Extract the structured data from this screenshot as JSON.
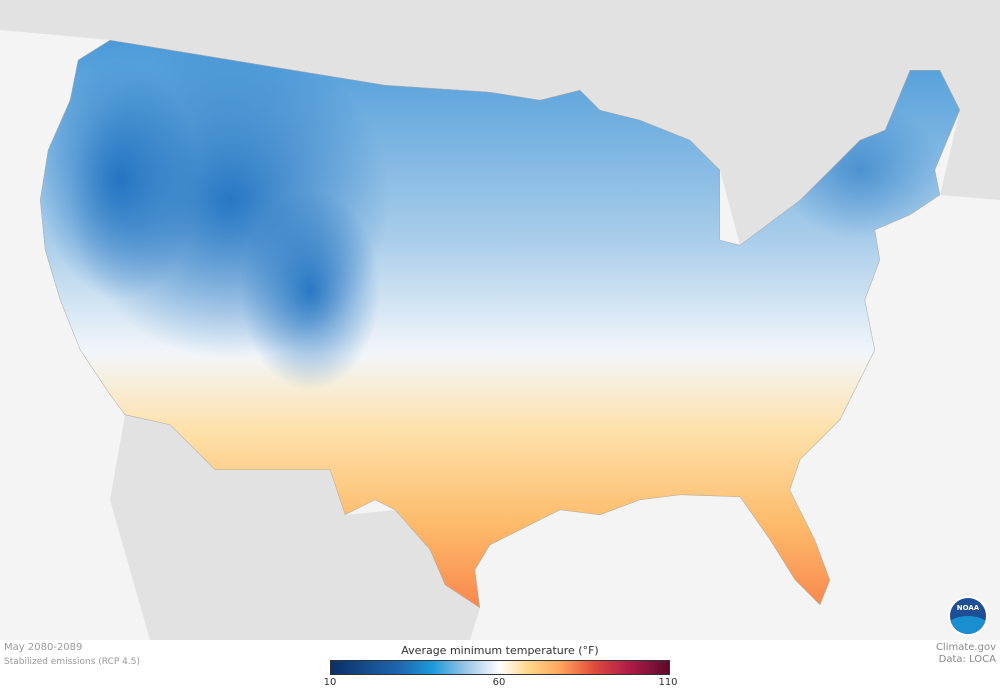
{
  "period": "May 2080-2089",
  "scenario": "Stabilized emissions (RCP 4.5)",
  "credit": {
    "site": "Climate.gov",
    "data": "Data: LOCA"
  },
  "legend": {
    "title": "Average minimum temperature (°F)",
    "min": "10",
    "mid": "60",
    "max": "110",
    "colors": [
      "#0b2f66",
      "#1a9ad8",
      "#ffffff",
      "#ffa35c",
      "#5c0a2a"
    ]
  },
  "logo": "NOAA",
  "colors": {
    "background": "#f4f4f4",
    "land": "#e2e2e2",
    "cold": "#1a80cc",
    "warm": "#ffb060"
  }
}
